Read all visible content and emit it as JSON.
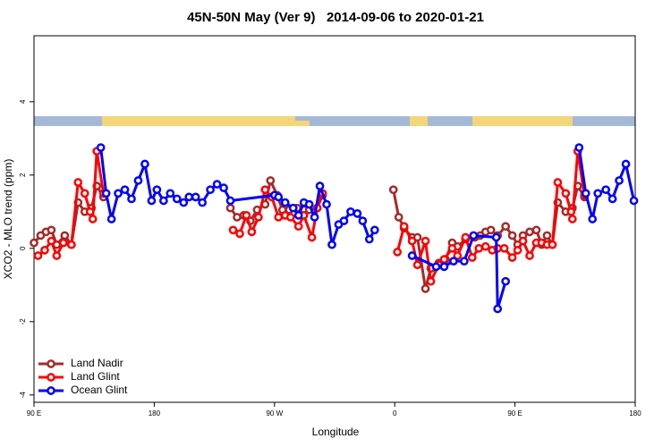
{
  "chart_data": {
    "type": "line",
    "title": "45N-50N May (Ver 9)   2014-09-06 to 2020-01-21",
    "xlabel": "Longitude",
    "ylabel": "XCO2 - MLO trend (ppm)",
    "xlim": [
      90,
      540
    ],
    "xticks": [
      {
        "value": 90,
        "label": "90 E"
      },
      {
        "value": 180,
        "label": "180"
      },
      {
        "value": 270,
        "label": "90 W"
      },
      {
        "value": 360,
        "label": "0"
      },
      {
        "value": 450,
        "label": "90 E"
      },
      {
        "value": 540,
        "label": "180"
      }
    ],
    "ylim": [
      -4.2,
      5.8
    ],
    "yticks": [
      -4,
      -2,
      0,
      2,
      4
    ],
    "legend": "bottom-left",
    "series": [
      {
        "name": "Land Nadir",
        "color": "#a52a2a",
        "x": [
          90,
          95,
          99,
          103,
          107,
          113,
          118,
          123,
          128,
          133,
          137,
          142,
          null,
          237,
          242,
          247,
          252,
          257,
          263,
          267,
          272,
          276,
          281,
          287,
          292,
          296,
          302,
          306,
          null,
          359,
          363,
          367,
          373,
          377,
          383,
          387,
          393,
          398,
          403,
          407,
          413,
          420,
          424,
          428,
          432,
          437,
          443,
          448,
          452,
          456,
          461,
          466,
          470,
          474,
          478,
          482,
          488,
          493,
          497,
          502
        ],
        "values": [
          0.15,
          0.35,
          0.45,
          0.5,
          0.1,
          0.35,
          0.1,
          1.25,
          1.0,
          1.1,
          1.7,
          1.4,
          null,
          1.1,
          0.85,
          0.9,
          0.75,
          1.05,
          1.2,
          1.85,
          1.45,
          1.05,
          1.05,
          1.1,
          1.05,
          1.05,
          1.1,
          1.45,
          null,
          1.6,
          0.85,
          0.55,
          0.3,
          0.3,
          -1.1,
          -0.55,
          -0.4,
          -0.3,
          0.15,
          0.05,
          0.25,
          0.3,
          0.35,
          0.45,
          0.5,
          0.35,
          0.6,
          0.35,
          0.1,
          0.35,
          0.45,
          0.5,
          0.1,
          0.35,
          0.1,
          1.25,
          1.0,
          1.1,
          1.7,
          1.4
        ]
      },
      {
        "name": "Land Glint",
        "color": "#ff0000",
        "x": [
          93,
          98,
          103,
          107,
          112,
          118,
          123,
          128,
          132,
          134,
          137,
          142,
          null,
          239,
          244,
          249,
          253,
          258,
          263,
          268,
          273,
          278,
          282,
          288,
          292,
          298,
          302,
          306,
          null,
          362,
          367,
          373,
          377,
          383,
          387,
          393,
          397,
          403,
          407,
          413,
          418,
          423,
          428,
          433,
          437,
          442,
          448,
          452,
          456,
          461,
          466,
          470,
          474,
          478,
          482,
          488,
          492,
          493,
          497,
          502
        ],
        "values": [
          -0.2,
          -0.05,
          0.2,
          -0.2,
          0.15,
          0.1,
          1.8,
          1.5,
          1.0,
          0.8,
          2.65,
          1.5,
          null,
          0.5,
          0.4,
          0.9,
          0.45,
          0.85,
          1.6,
          1.4,
          0.85,
          0.9,
          0.85,
          0.6,
          0.9,
          0.3,
          1.1,
          1.5,
          null,
          -0.1,
          0.6,
          0.2,
          -0.45,
          0.2,
          -0.9,
          -0.45,
          -0.3,
          0,
          -0.2,
          0.3,
          -0.25,
          0,
          0.05,
          -0.05,
          0,
          0,
          -0.25,
          -0.05,
          0.2,
          -0.2,
          0.15,
          0.15,
          0.1,
          0.1,
          1.8,
          1.5,
          1.0,
          0.8,
          2.65,
          1.45
        ]
      },
      {
        "name": "Ocean Glint",
        "color": "#0000ff",
        "x": [
          140,
          144,
          148,
          153,
          158,
          163,
          168,
          173,
          178,
          182,
          187,
          192,
          197,
          202,
          206,
          211,
          216,
          222,
          227,
          232,
          237,
          270,
          273,
          278,
          284,
          288,
          292,
          296,
          300,
          304,
          309,
          313,
          318,
          322,
          327,
          332,
          336,
          341,
          345,
          null,
          373,
          391,
          397,
          404,
          412,
          419,
          436,
          437,
          443,
          null,
          498,
          503,
          508,
          512,
          518,
          523,
          528,
          533,
          539
        ],
        "values": [
          2.75,
          1.5,
          0.8,
          1.5,
          1.6,
          1.35,
          1.85,
          2.3,
          1.3,
          1.6,
          1.3,
          1.5,
          1.35,
          1.25,
          1.4,
          1.4,
          1.25,
          1.6,
          1.75,
          1.65,
          1.3,
          1.45,
          1.4,
          1.25,
          1.1,
          0.9,
          1.25,
          1.2,
          0.85,
          1.7,
          1.2,
          0.1,
          0.65,
          0.75,
          1.0,
          0.95,
          0.75,
          0.25,
          0.5,
          null,
          -0.2,
          -0.5,
          -0.5,
          -0.35,
          -0.35,
          0.35,
          0.3,
          -1.65,
          -0.9,
          null,
          2.75,
          1.5,
          0.8,
          1.5,
          1.6,
          1.35,
          1.85,
          2.3,
          1.3
        ]
      }
    ]
  }
}
